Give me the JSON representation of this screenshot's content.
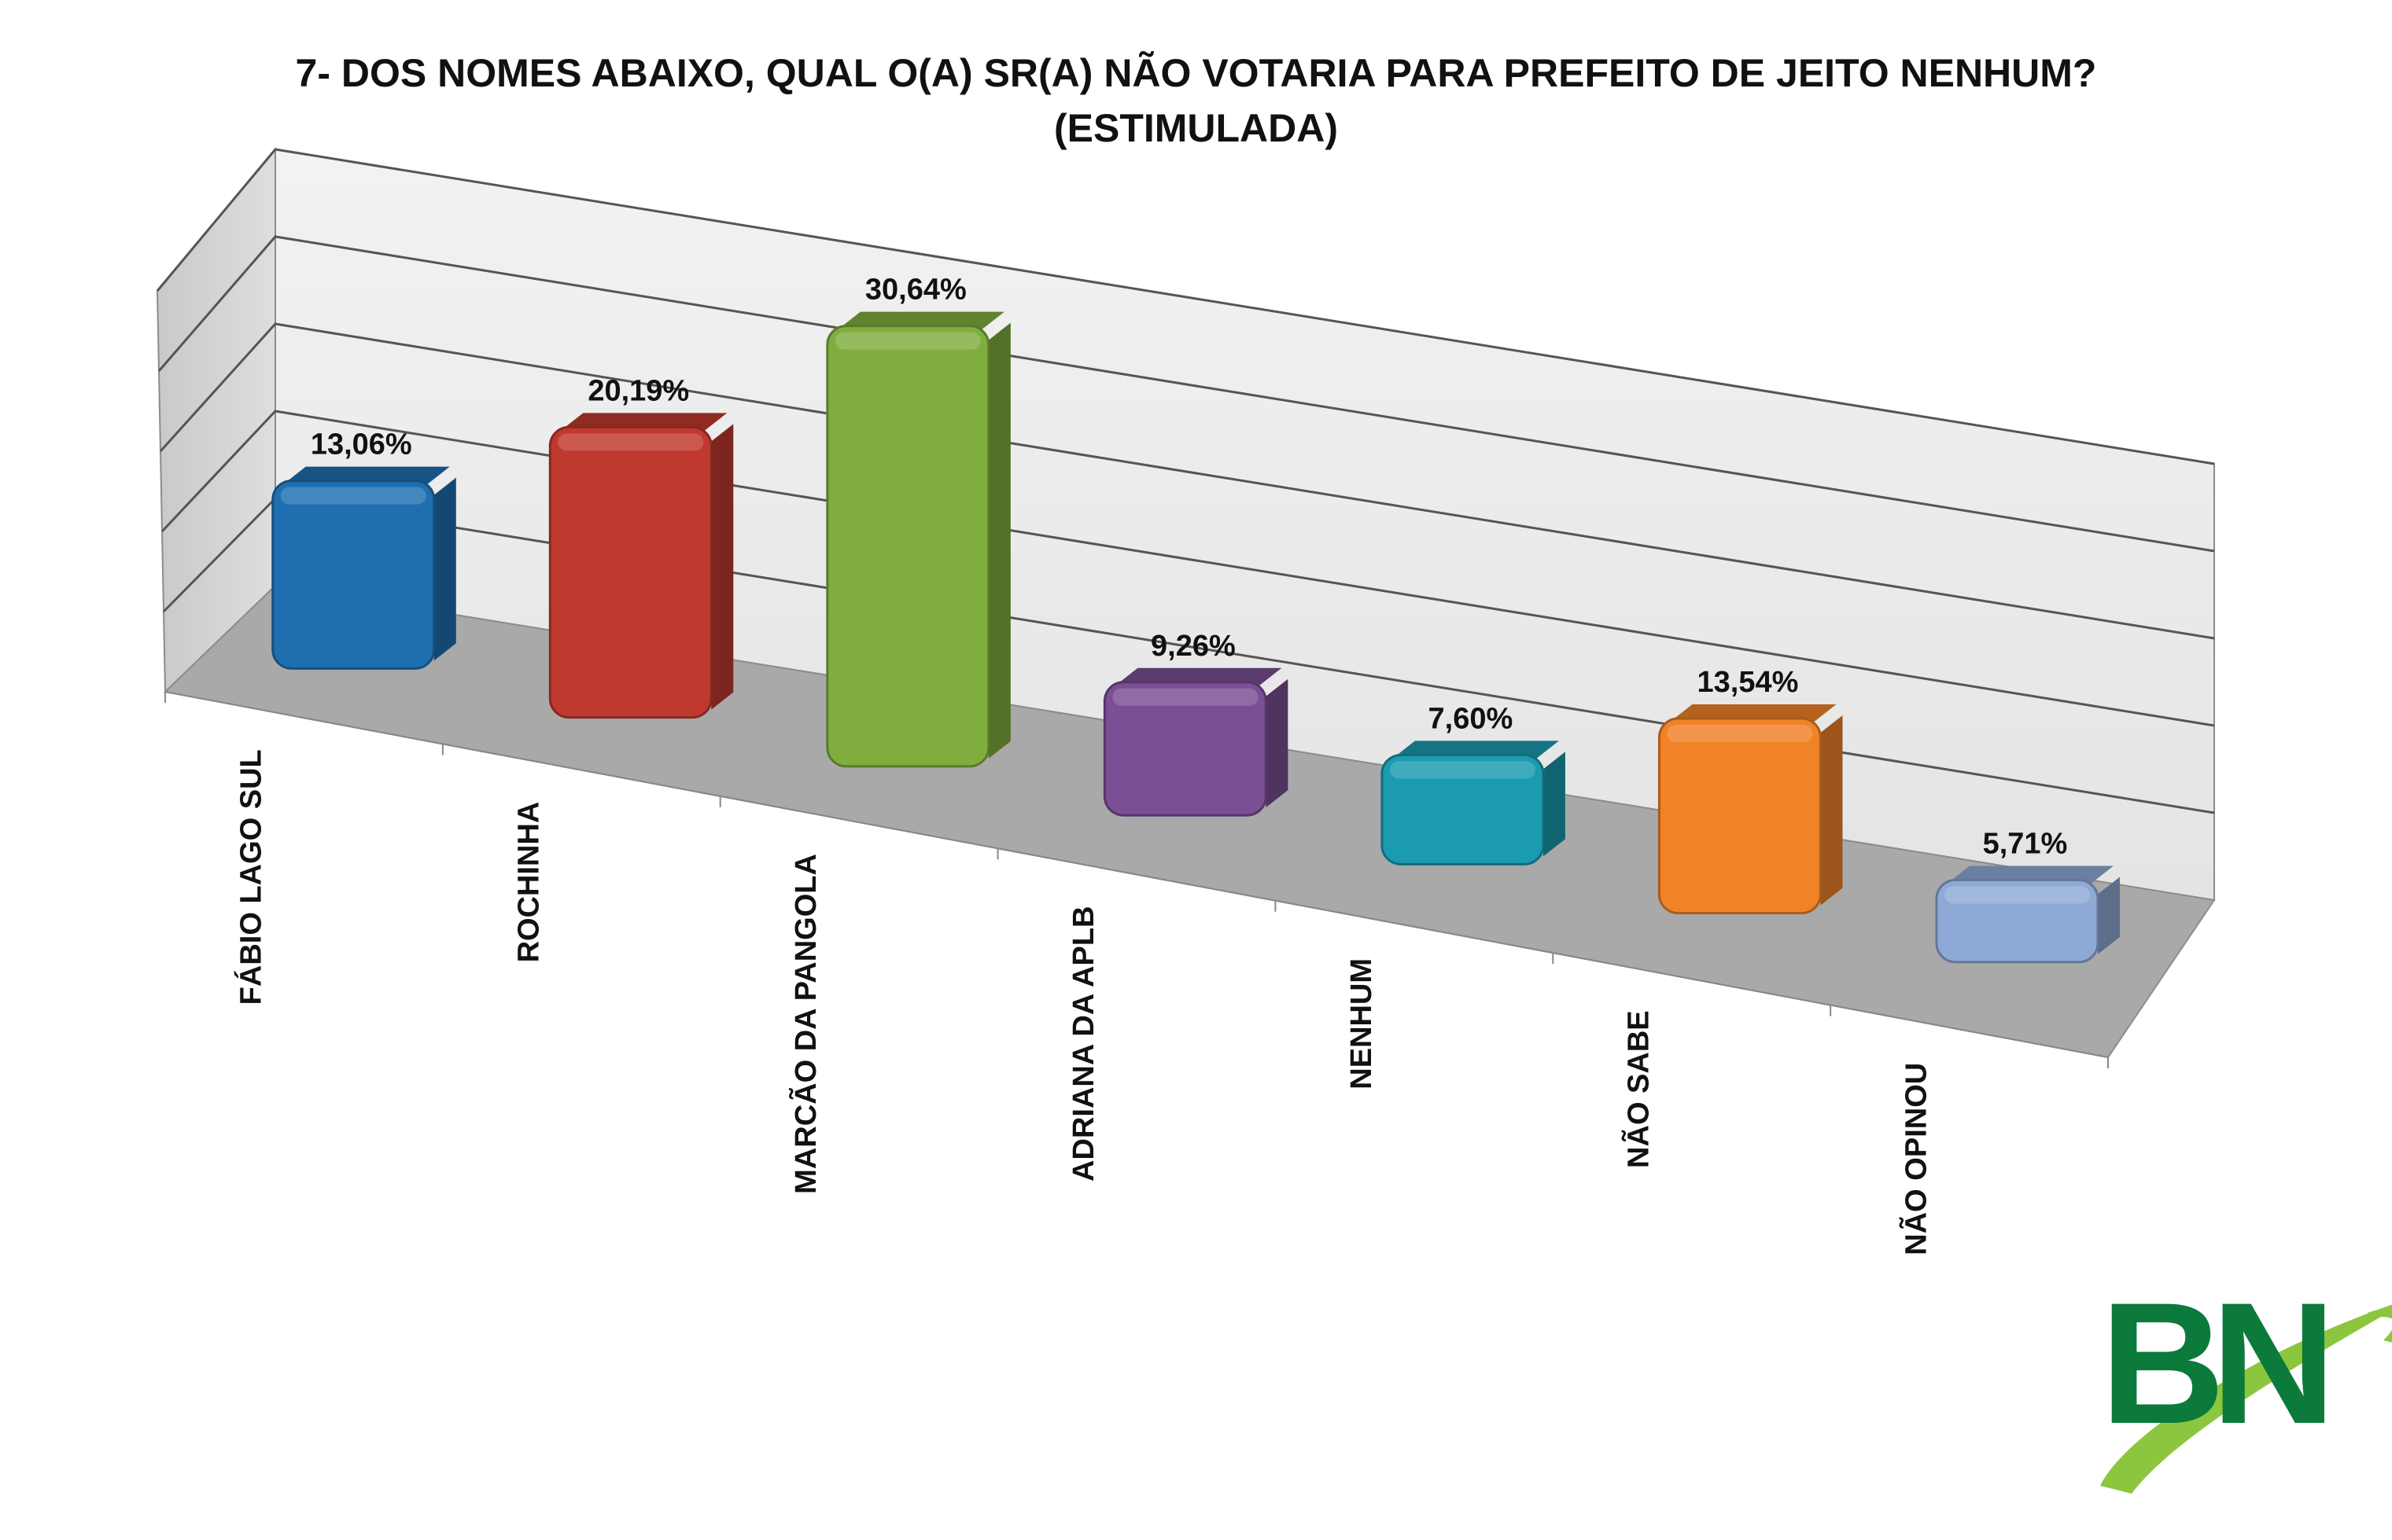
{
  "chart_data": {
    "type": "bar",
    "title": "7- DOS NOMES ABAIXO, QUAL O(A) SR(A) NÃO VOTARIA PARA PREFEITO DE JEITO NENHUM?",
    "subtitle": "(ESTIMULADA)",
    "categories": [
      "FÁBIO LAGO SUL",
      "ROCHINHA",
      "MARCÃO DA PANGOLA",
      "ADRIANA DA APLB",
      "NENHUM",
      "NÃO SABE",
      "NÃO OPINOU"
    ],
    "values": [
      13.06,
      20.19,
      30.64,
      9.26,
      7.6,
      13.54,
      5.71
    ],
    "value_labels": [
      "13,06%",
      "20,19%",
      "30,64%",
      "9,26%",
      "7,60%",
      "13,54%",
      "5,71%"
    ],
    "colors": [
      "#1f6fb0",
      "#c0392f",
      "#7fae3e",
      "#7a4f93",
      "#1a9bb0",
      "#f08228",
      "#8fa9d6"
    ],
    "xlabel": "",
    "ylabel": "",
    "ylim": [
      0,
      35
    ],
    "grid": true,
    "legend": "none",
    "style": "3d"
  },
  "logo": {
    "text": "BN",
    "colors": [
      "#0b7a3b",
      "#8cc63f"
    ]
  }
}
